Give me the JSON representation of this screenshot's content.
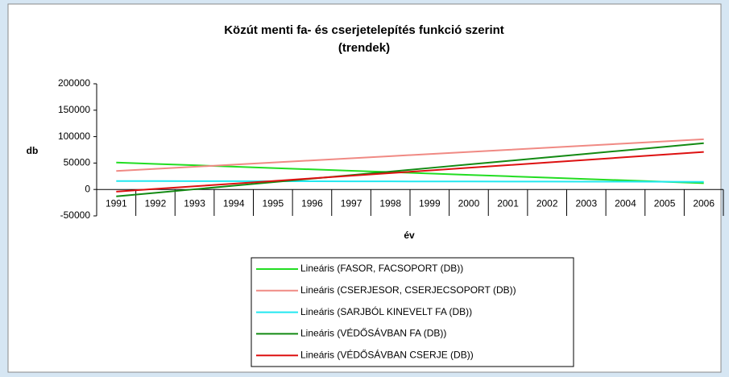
{
  "chart_data": {
    "type": "line",
    "title": [
      "Közút menti fa- és cserjetelepítés funkció szerint",
      "(trendek)"
    ],
    "y_label": "db",
    "x_label": "év",
    "categories": [
      "1991",
      "1992",
      "1993",
      "1994",
      "1995",
      "1996",
      "1997",
      "1998",
      "1999",
      "2000",
      "2001",
      "2002",
      "2003",
      "2004",
      "2005",
      "2006"
    ],
    "series": [
      {
        "name": "Lineáris (FASOR, FACSOPORT (DB))",
        "color": "#22dd22",
        "values": [
          51000,
          48400,
          45800,
          43200,
          40600,
          38000,
          35400,
          32800,
          30200,
          27600,
          25000,
          22400,
          19800,
          17200,
          14600,
          12000
        ]
      },
      {
        "name": "Lineáris (CSERJESOR, CSERJECSOPORT (DB))",
        "color": "#f08a84",
        "values": [
          35000,
          39000,
          43000,
          47000,
          51000,
          55000,
          59000,
          63000,
          67000,
          71000,
          75000,
          79000,
          83000,
          87000,
          91000,
          95000
        ]
      },
      {
        "name": "Lineáris (SARJBÓL KINEVELT FA (DB))",
        "color": "#22e8f0",
        "values": [
          16000,
          15900,
          15800,
          15700,
          15600,
          15500,
          15400,
          15300,
          15200,
          15100,
          15000,
          14900,
          14800,
          14700,
          14600,
          14500
        ]
      },
      {
        "name": "Lineáris (VÉDŐSÁVBAN FA (DB))",
        "color": "#138a13",
        "values": [
          -13000,
          -6300,
          400,
          7100,
          13800,
          20500,
          27200,
          33900,
          40600,
          47300,
          54000,
          60700,
          67400,
          74100,
          80800,
          87500
        ]
      },
      {
        "name": "Lineáris (VÉDŐSÁVBAN CSERJE (DB))",
        "color": "#dd1111",
        "values": [
          -4000,
          1000,
          6000,
          11000,
          16000,
          21000,
          26000,
          31000,
          36000,
          41000,
          46000,
          51000,
          56000,
          61000,
          66000,
          71000
        ]
      }
    ],
    "ylim": [
      -50000,
      200000
    ],
    "yticks": [
      -50000,
      0,
      50000,
      100000,
      150000,
      200000
    ],
    "grid": false
  }
}
